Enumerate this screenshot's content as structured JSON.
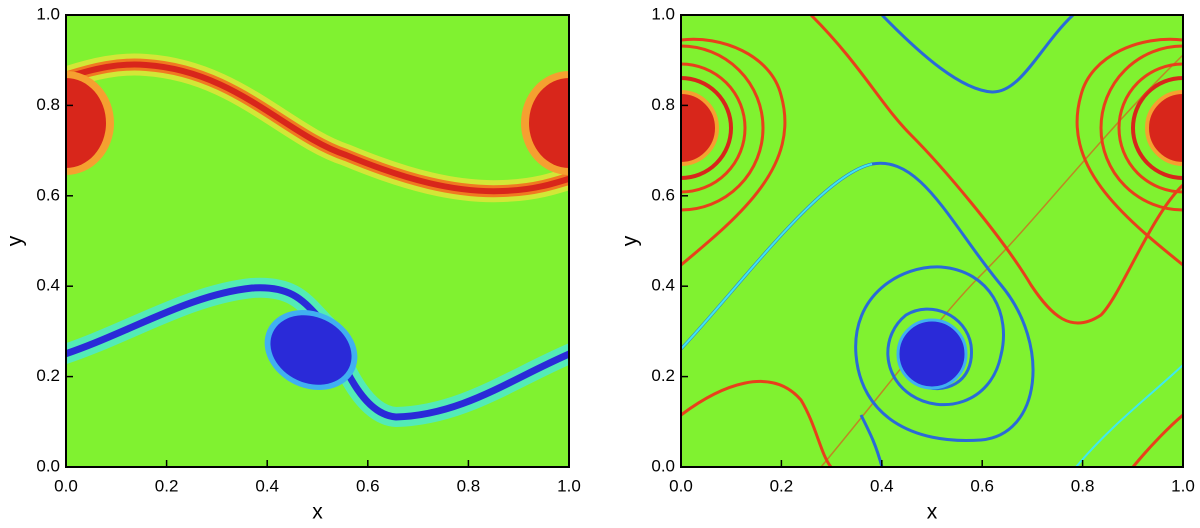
{
  "chart_data": [
    {
      "type": "contour",
      "xlabel": "x",
      "ylabel": "y",
      "xlim": [
        0,
        1
      ],
      "ylim": [
        0,
        1
      ],
      "xticks": [
        {
          "value": 0,
          "label": "0.0"
        },
        0.2,
        0.4,
        0.6,
        0.8,
        {
          "value": 1,
          "label": "1.0"
        }
      ],
      "yticks": [
        {
          "value": 0,
          "label": "0.0"
        },
        0.2,
        0.4,
        0.6,
        0.8,
        {
          "value": 1,
          "label": "1.0"
        }
      ],
      "background_color": "#80f230"
    },
    {
      "type": "contour",
      "xlabel": "x",
      "ylabel": "y",
      "xlim": [
        0,
        1
      ],
      "ylim": [
        0,
        1
      ],
      "xticks": [
        {
          "value": 0,
          "label": "0.0"
        },
        0.2,
        0.4,
        0.6,
        0.8,
        {
          "value": 1,
          "label": "1.0"
        }
      ],
      "yticks": [
        {
          "value": 0,
          "label": "0.0"
        },
        0.2,
        0.4,
        0.6,
        0.8,
        {
          "value": 1,
          "label": "1.0"
        }
      ],
      "background_color": "#80f230"
    }
  ]
}
